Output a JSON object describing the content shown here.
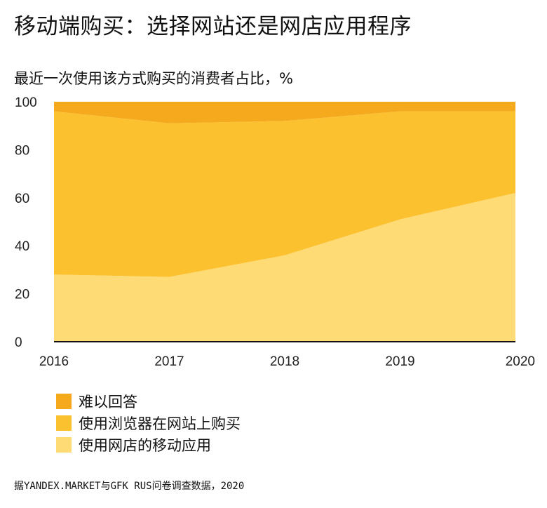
{
  "title": "移动端购买：选择网站还是网店应用程序",
  "subtitle": "最近一次使用该方式购买的消费者占比，%",
  "source": "据YANDEX.MARKET与GFK RUS问卷调查数据，2020",
  "chart_data": {
    "type": "area",
    "stacked": true,
    "x": [
      "2016",
      "2017",
      "2018",
      "2019",
      "2020"
    ],
    "ylim": [
      0,
      100
    ],
    "yticks": [
      "0",
      "20",
      "40",
      "60",
      "80",
      "100"
    ],
    "series": [
      {
        "name": "使用网店的移动应用",
        "values": [
          28,
          27,
          36,
          51,
          62
        ],
        "color": "#FFDB75"
      },
      {
        "name": "使用浏览器在网站上购买",
        "values": [
          68,
          64,
          56,
          45,
          34
        ],
        "color": "#FCC12F"
      },
      {
        "name": "难以回答",
        "values": [
          4,
          9,
          8,
          4,
          4
        ],
        "color": "#F5AA1D"
      }
    ],
    "legend_order": [
      2,
      1,
      0
    ],
    "legend_position": "bottom-left",
    "grid": false
  }
}
